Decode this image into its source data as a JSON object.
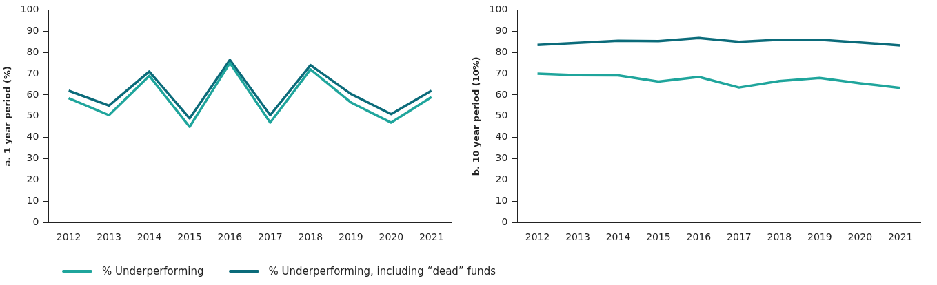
{
  "chart_data": [
    {
      "type": "line",
      "ylabel": "a. 1 year period (%)",
      "categories": [
        "2012",
        "2013",
        "2014",
        "2015",
        "2016",
        "2017",
        "2018",
        "2019",
        "2020",
        "2021"
      ],
      "ylim": [
        0,
        100
      ],
      "yticks": [
        0,
        10,
        20,
        30,
        40,
        50,
        60,
        70,
        80,
        90,
        100
      ],
      "grid": false,
      "legend": "bottom",
      "series": [
        {
          "name": "% Underperforming",
          "color": "#1fa59c",
          "values": [
            58.5,
            50.5,
            69,
            45,
            75,
            47,
            72,
            56.5,
            47,
            59
          ]
        },
        {
          "name": "% Underperforming, including “dead” funds",
          "color": "#0b6b7a",
          "values": [
            62,
            55,
            71,
            49,
            76.5,
            50.5,
            74,
            60.5,
            51,
            62
          ]
        }
      ]
    },
    {
      "type": "line",
      "ylabel": "b. 10 year period (10%)",
      "categories": [
        "2012",
        "2013",
        "2014",
        "2015",
        "2016",
        "2017",
        "2018",
        "2019",
        "2020",
        "2021"
      ],
      "ylim": [
        0,
        100
      ],
      "yticks": [
        0,
        10,
        20,
        30,
        40,
        50,
        60,
        70,
        80,
        90,
        100
      ],
      "grid": false,
      "series": [
        {
          "color": "#1fa59c",
          "values": [
            70,
            69.3,
            69.2,
            66.3,
            68.5,
            63.5,
            66.5,
            68,
            65.5,
            63.3
          ]
        },
        {
          "color": "#0b6b7a",
          "values": [
            83.5,
            84.5,
            85.5,
            85.3,
            86.8,
            85,
            86,
            86,
            84.7,
            83.3
          ]
        }
      ]
    }
  ]
}
